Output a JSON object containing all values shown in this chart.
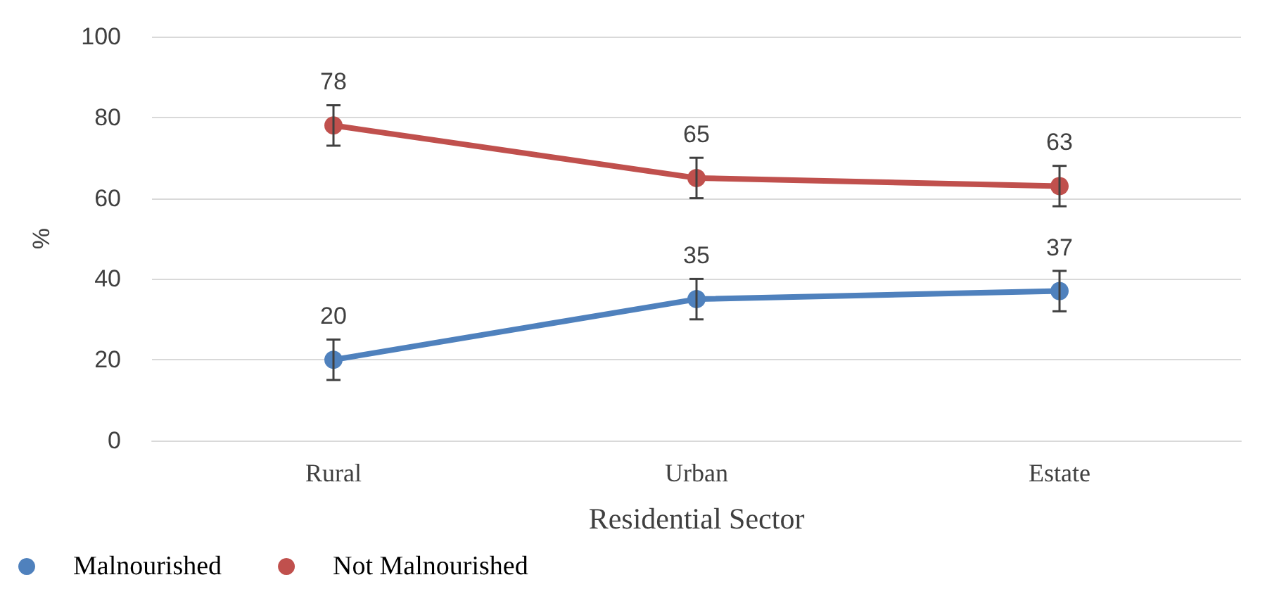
{
  "chart_data": {
    "type": "line",
    "xlabel": "Residential Sector",
    "ylabel": "%",
    "categories": [
      "Rural",
      "Urban",
      "Estate"
    ],
    "series": [
      {
        "name": "Malnourished",
        "color": "#4f81bd",
        "values": [
          20,
          35,
          37
        ],
        "errors": [
          5,
          5,
          5
        ]
      },
      {
        "name": "Not Malnourished",
        "color": "#c0504d",
        "values": [
          78,
          65,
          63
        ],
        "errors": [
          5,
          5,
          5
        ]
      }
    ],
    "ylim": [
      0,
      100
    ],
    "yticks": [
      0,
      20,
      40,
      60,
      80,
      100
    ],
    "grid": "y",
    "legend": "bottom left",
    "marker": "circle",
    "line_style": "solid",
    "data_labels": true
  }
}
